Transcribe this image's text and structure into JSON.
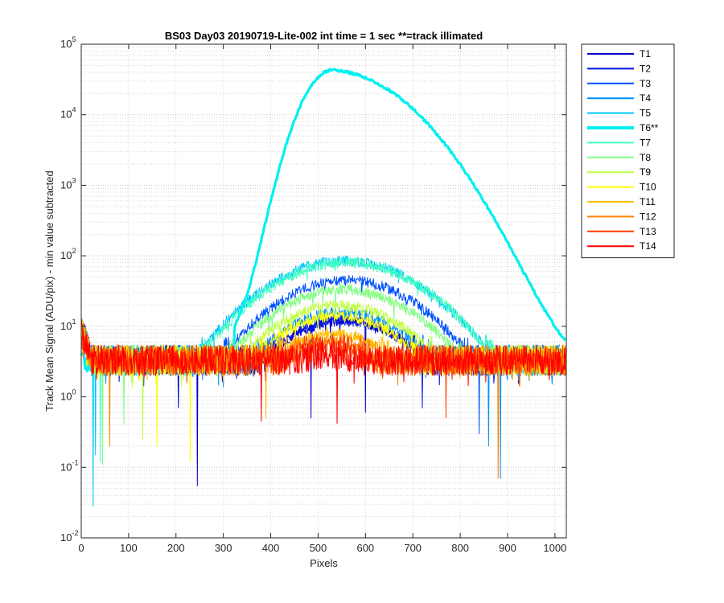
{
  "chart_data": {
    "type": "line",
    "title": "BS03 Day03 20190719-Lite-002 int time = 1 sec    **=track illimated",
    "xlabel": "Pixels",
    "ylabel": "Track Mean Signal (ADU/pix) - min value subtracted",
    "xlim": [
      0,
      1024
    ],
    "ylim": [
      0.01,
      100000
    ],
    "yscale": "log",
    "grid": true,
    "minor_grid": true,
    "legend_position": "outside-top-right",
    "x_ticks": [
      "0",
      "100",
      "200",
      "300",
      "400",
      "500",
      "600",
      "700",
      "800",
      "900",
      "1000"
    ],
    "y_ticks": [
      {
        "base": "10",
        "exp": "-2"
      },
      {
        "base": "10",
        "exp": "-1"
      },
      {
        "base": "10",
        "exp": "0"
      },
      {
        "base": "10",
        "exp": "1"
      },
      {
        "base": "10",
        "exp": "2"
      },
      {
        "base": "10",
        "exp": "3"
      },
      {
        "base": "10",
        "exp": "4"
      },
      {
        "base": "10",
        "exp": "5"
      }
    ],
    "series": [
      {
        "name": "T1",
        "color": "#0000c8",
        "peak": 12,
        "center": 555,
        "sigma": 110,
        "dip_min": 0.6,
        "dips": [
          [
            485,
            0.5
          ],
          [
            245,
            0.055
          ],
          [
            205,
            0.7
          ],
          [
            600,
            0.6
          ]
        ]
      },
      {
        "name": "T2",
        "color": "#0010e0",
        "peak": 12,
        "center": 555,
        "sigma": 110,
        "dip_min": 0.6,
        "dips": [
          [
            720,
            0.7
          ]
        ]
      },
      {
        "name": "T3",
        "color": "#0050ff",
        "peak": 45,
        "center": 560,
        "sigma": 118,
        "dip_min": 0.7,
        "dips": [
          [
            840,
            0.3
          ]
        ]
      },
      {
        "name": "T4",
        "color": "#0090ff",
        "peak": 16,
        "center": 550,
        "sigma": 110,
        "dip_min": 0.6,
        "dips": [
          [
            885,
            0.07
          ],
          [
            860,
            0.2
          ]
        ]
      },
      {
        "name": "T5",
        "color": "#00c8ff",
        "peak": 85,
        "center": 555,
        "sigma": 125,
        "dip_min": 0.7,
        "dips": [
          [
            25,
            0.028
          ],
          [
            30,
            0.15
          ]
        ]
      },
      {
        "name": "T6**",
        "color": "#00f0f0",
        "thick": true,
        "peak": 40000,
        "center": 528,
        "sigma": 70,
        "tail": 110,
        "dip_min": 0.9,
        "dips": []
      },
      {
        "name": "T7",
        "color": "#40ffc0",
        "peak": 80,
        "center": 560,
        "sigma": 125,
        "dip_min": 0.7,
        "dips": [
          [
            40,
            0.12
          ]
        ]
      },
      {
        "name": "T8",
        "color": "#80ff80",
        "peak": 33,
        "center": 555,
        "sigma": 118,
        "dip_min": 0.6,
        "dips": [
          [
            45,
            0.11
          ],
          [
            90,
            0.4
          ]
        ]
      },
      {
        "name": "T9",
        "color": "#c0ff40",
        "peak": 20,
        "center": 545,
        "sigma": 112,
        "dip_min": 0.6,
        "dips": [
          [
            130,
            0.25
          ]
        ]
      },
      {
        "name": "T10",
        "color": "#ffff00",
        "peak": 14,
        "center": 540,
        "sigma": 108,
        "dip_min": 0.6,
        "dips": [
          [
            160,
            0.2
          ],
          [
            230,
            0.12
          ]
        ]
      },
      {
        "name": "T11",
        "color": "#ffc000",
        "peak": 8,
        "center": 530,
        "sigma": 100,
        "dip_min": 0.6,
        "dips": [
          [
            390,
            0.5
          ]
        ]
      },
      {
        "name": "T12",
        "color": "#ff8000",
        "peak": 6,
        "center": 525,
        "sigma": 100,
        "dip_min": 0.6,
        "dips": [
          [
            60,
            0.2
          ],
          [
            880,
            0.07
          ]
        ]
      },
      {
        "name": "T13",
        "color": "#ff4000",
        "peak": 5,
        "center": 520,
        "sigma": 100,
        "dip_min": 0.6,
        "dips": [
          [
            770,
            0.5
          ]
        ]
      },
      {
        "name": "T14",
        "color": "#ff0000",
        "peak": 4,
        "center": 520,
        "sigma": 100,
        "dip_min": 0.6,
        "dips": [
          [
            380,
            0.45
          ],
          [
            540,
            0.42
          ]
        ]
      }
    ]
  }
}
